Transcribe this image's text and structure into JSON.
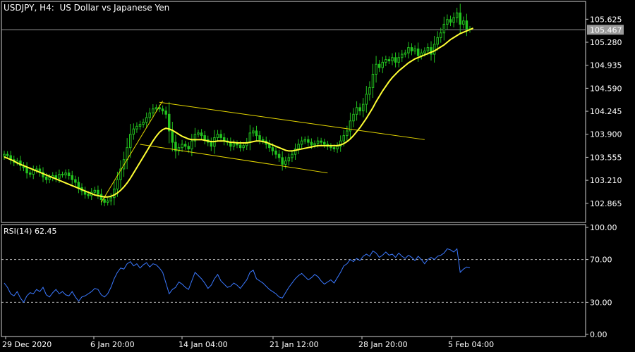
{
  "header": {
    "title": "USDJPY, H4:  US Dollar vs Japanese Yen"
  },
  "rsi_header": {
    "label": "RSI(14) 62.45"
  },
  "colors": {
    "background": "#000000",
    "candles": "#22c21e",
    "ma_line": "#ffff33",
    "channel": "#e6d800",
    "rsi_line": "#3a78ff",
    "grid_dash": "#bfbfbf",
    "current_price_line": "#9a9a9a",
    "current_price_badge": "#9a9a9a"
  },
  "chart_data": [
    {
      "type": "line",
      "name": "price",
      "title": "USDJPY, H4:  US Dollar vs Japanese Yen",
      "ylim": [
        102.62,
        105.85
      ],
      "y_ticks": [
        "105.625",
        "105.280",
        "104.935",
        "104.590",
        "104.245",
        "103.900",
        "103.555",
        "103.210",
        "102.865"
      ],
      "y_tick_values": [
        105.625,
        105.28,
        104.935,
        104.59,
        104.245,
        103.9,
        103.555,
        103.21,
        102.865
      ],
      "current_price": "105.467",
      "current_price_value": 105.467,
      "x_ticks": [
        "29 Dec 2020",
        "6 Jan 20:00",
        "14 Jan 04:00",
        "21 Jan 12:00",
        "28 Jan 20:00",
        "5 Feb 04:00"
      ],
      "series": [
        {
          "kind": "candles",
          "close": [
            103.6,
            103.58,
            103.52,
            103.48,
            103.5,
            103.43,
            103.4,
            103.32,
            103.3,
            103.36,
            103.38,
            103.33,
            103.26,
            103.22,
            103.25,
            103.28,
            103.24,
            103.3,
            103.29,
            103.32,
            103.28,
            103.22,
            103.18,
            103.1,
            103.05,
            103.0,
            102.98,
            103.03,
            103.06,
            103.0,
            102.92,
            102.88,
            102.9,
            102.95,
            103.08,
            103.22,
            103.38,
            103.52,
            103.7,
            103.9,
            103.98,
            104.02,
            104.05,
            104.08,
            104.15,
            104.22,
            104.28,
            104.3,
            104.28,
            104.25,
            104.2,
            103.95,
            103.78,
            103.65,
            103.7,
            103.75,
            103.72,
            103.68,
            103.8,
            103.9,
            103.92,
            103.88,
            103.82,
            103.78,
            103.72,
            103.85,
            103.9,
            103.85,
            103.8,
            103.78,
            103.72,
            103.76,
            103.74,
            103.7,
            103.73,
            103.78,
            103.92,
            103.95,
            103.88,
            103.82,
            103.8,
            103.75,
            103.7,
            103.65,
            103.6,
            103.55,
            103.45,
            103.5,
            103.55,
            103.6,
            103.68,
            103.75,
            103.8,
            103.82,
            103.78,
            103.74,
            103.76,
            103.8,
            103.78,
            103.75,
            103.72,
            103.7,
            103.68,
            103.72,
            103.8,
            103.88,
            103.95,
            104.1,
            104.2,
            104.3,
            104.25,
            104.35,
            104.5,
            104.6,
            104.8,
            104.95,
            104.9,
            104.98,
            105.02,
            105.0,
            105.05,
            104.98,
            105.05,
            105.1,
            105.12,
            105.2,
            105.15,
            105.18,
            105.08,
            105.12,
            105.15,
            105.2,
            105.1,
            105.25,
            105.35,
            105.42,
            105.55,
            105.62,
            105.58,
            105.65,
            105.72,
            105.55,
            105.6,
            105.48,
            105.467
          ],
          "ma": [
            103.56,
            103.54,
            103.52,
            103.5,
            103.47,
            103.45,
            103.43,
            103.41,
            103.39,
            103.37,
            103.35,
            103.33,
            103.31,
            103.29,
            103.27,
            103.25,
            103.23,
            103.21,
            103.19,
            103.17,
            103.15,
            103.13,
            103.11,
            103.09,
            103.07,
            103.05,
            103.03,
            103.01,
            102.99,
            102.98,
            102.97,
            102.96,
            102.96,
            102.97,
            102.99,
            103.02,
            103.06,
            103.11,
            103.17,
            103.24,
            103.32,
            103.4,
            103.48,
            103.56,
            103.64,
            103.72,
            103.8,
            103.87,
            103.93,
            103.97,
            103.99,
            103.98,
            103.96,
            103.93,
            103.9,
            103.87,
            103.85,
            103.83,
            103.82,
            103.82,
            103.82,
            103.82,
            103.81,
            103.8,
            103.79,
            103.79,
            103.8,
            103.8,
            103.8,
            103.79,
            103.78,
            103.78,
            103.77,
            103.77,
            103.77,
            103.77,
            103.78,
            103.79,
            103.8,
            103.8,
            103.79,
            103.78,
            103.76,
            103.74,
            103.72,
            103.7,
            103.68,
            103.66,
            103.65,
            103.65,
            103.66,
            103.67,
            103.68,
            103.69,
            103.7,
            103.71,
            103.72,
            103.73,
            103.73,
            103.73,
            103.73,
            103.73,
            103.73,
            103.73,
            103.74,
            103.76,
            103.79,
            103.83,
            103.88,
            103.94,
            104.0,
            104.07,
            104.14,
            104.22,
            104.3,
            104.39,
            104.47,
            104.55,
            104.62,
            104.69,
            104.75,
            104.8,
            104.85,
            104.89,
            104.93,
            104.97,
            105.0,
            105.03,
            105.05,
            105.07,
            105.09,
            105.11,
            105.13,
            105.15,
            105.18,
            105.21,
            105.24,
            105.28,
            105.32,
            105.35,
            105.38,
            105.41,
            105.43,
            105.45,
            105.47,
            105.49
          ]
        },
        {
          "kind": "channel",
          "upper": {
            "start": [
              48,
              104.38
            ],
            "end": [
              130,
              103.82
            ]
          },
          "lower": {
            "start": [
              42,
              103.75
            ],
            "end": [
              100,
              103.32
            ]
          },
          "trend": {
            "start": [
              30,
              102.88
            ],
            "end": [
              49,
              104.4
            ]
          }
        }
      ]
    },
    {
      "type": "line",
      "name": "RSI(14)",
      "title": "RSI(14) 62.45",
      "ylim": [
        0,
        100
      ],
      "y_ticks": [
        "100.00",
        "70.00",
        "30.00",
        "0.00"
      ],
      "y_tick_values": [
        100,
        70,
        30,
        0
      ],
      "levels": [
        70,
        30
      ],
      "series": [
        {
          "values": [
            48,
            44,
            38,
            36,
            40,
            34,
            30,
            36,
            39,
            38,
            42,
            40,
            44,
            37,
            35,
            39,
            42,
            38,
            40,
            37,
            36,
            40,
            35,
            31,
            35,
            36,
            38,
            40,
            43,
            42,
            37,
            35,
            38,
            44,
            52,
            58,
            62,
            61,
            66,
            68,
            64,
            66,
            62,
            65,
            67,
            63,
            66,
            65,
            62,
            58,
            48,
            38,
            42,
            44,
            49,
            47,
            44,
            42,
            50,
            58,
            55,
            52,
            48,
            43,
            46,
            52,
            56,
            50,
            47,
            44,
            45,
            48,
            46,
            43,
            47,
            51,
            58,
            60,
            52,
            50,
            48,
            45,
            42,
            40,
            38,
            35,
            34,
            39,
            44,
            48,
            52,
            55,
            57,
            54,
            51,
            53,
            56,
            54,
            50,
            47,
            49,
            51,
            48,
            53,
            58,
            64,
            66,
            70,
            68,
            71,
            69,
            73,
            75,
            73,
            78,
            76,
            72,
            74,
            77,
            74,
            75,
            72,
            76,
            73,
            71,
            74,
            72,
            69,
            73,
            70,
            66,
            70,
            72,
            70,
            73,
            74,
            76,
            80,
            79,
            77,
            80,
            58,
            61,
            63,
            62.45
          ]
        }
      ]
    }
  ]
}
